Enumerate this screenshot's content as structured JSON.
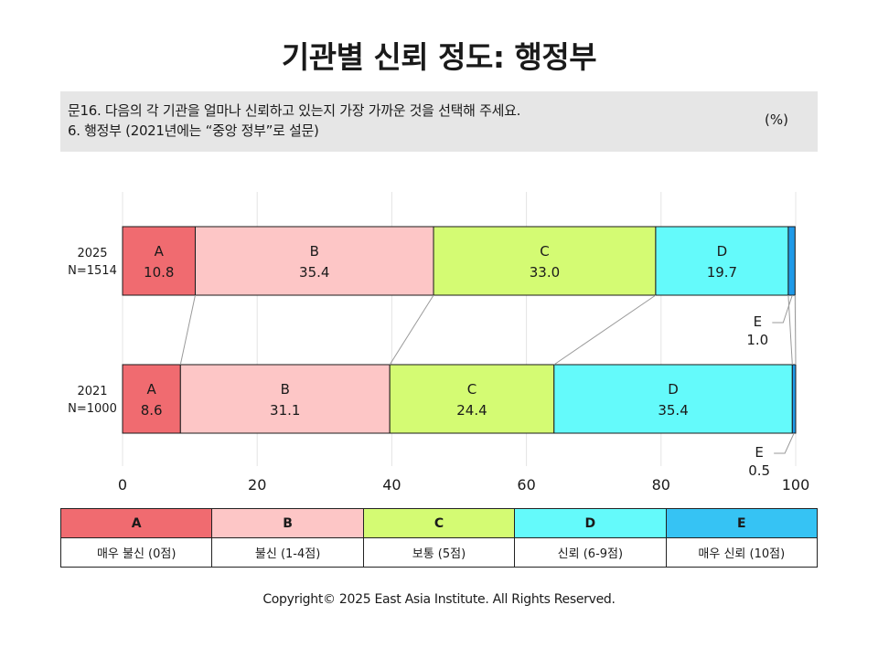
{
  "header": {
    "title": "기관별 신뢰 정도: 행정부",
    "question_line1": "문16. 다음의 각 기관을 얼마나 신뢰하고 있는지 가장 가까운 것을 선택해 주세요.",
    "question_line2": "6. 행정부 (2021년에는 “중앙 정부”로 설문)",
    "unit": "(%)"
  },
  "chart_data": {
    "type": "bar",
    "orientation": "horizontal",
    "stacked": true,
    "categories": [
      {
        "year": "2025",
        "n": "N=1514"
      },
      {
        "year": "2021",
        "n": "N=1000"
      }
    ],
    "series": [
      {
        "name": "A",
        "color": "#f06b70",
        "values": [
          10.8,
          8.6
        ]
      },
      {
        "name": "B",
        "color": "#fdc6c6",
        "values": [
          35.4,
          31.1
        ]
      },
      {
        "name": "C",
        "color": "#d4fb73",
        "values": [
          33.0,
          24.4
        ]
      },
      {
        "name": "D",
        "color": "#64fafb",
        "values": [
          19.7,
          35.4
        ]
      },
      {
        "name": "E",
        "color": "#1f9ae8",
        "values": [
          1.0,
          0.5
        ]
      }
    ],
    "xlim": [
      0,
      100
    ],
    "xticks": [
      "0",
      "20",
      "40",
      "60",
      "80",
      "100"
    ],
    "grid": true
  },
  "legend": {
    "keys": [
      {
        "key": "A",
        "label": "매우 불신 (0점)",
        "color": "#f06b70"
      },
      {
        "key": "B",
        "label": "불신 (1-4점)",
        "color": "#fdc6c6"
      },
      {
        "key": "C",
        "label": "보통 (5점)",
        "color": "#d4fb73"
      },
      {
        "key": "D",
        "label": "신뢰 (6-9점)",
        "color": "#64fafb"
      },
      {
        "key": "E",
        "label": "매우 신뢰 (10점)",
        "color": "#36c3f4"
      }
    ]
  },
  "footer": {
    "copyright": "Copyright© 2025 East Asia Institute. All Rights Reserved."
  }
}
